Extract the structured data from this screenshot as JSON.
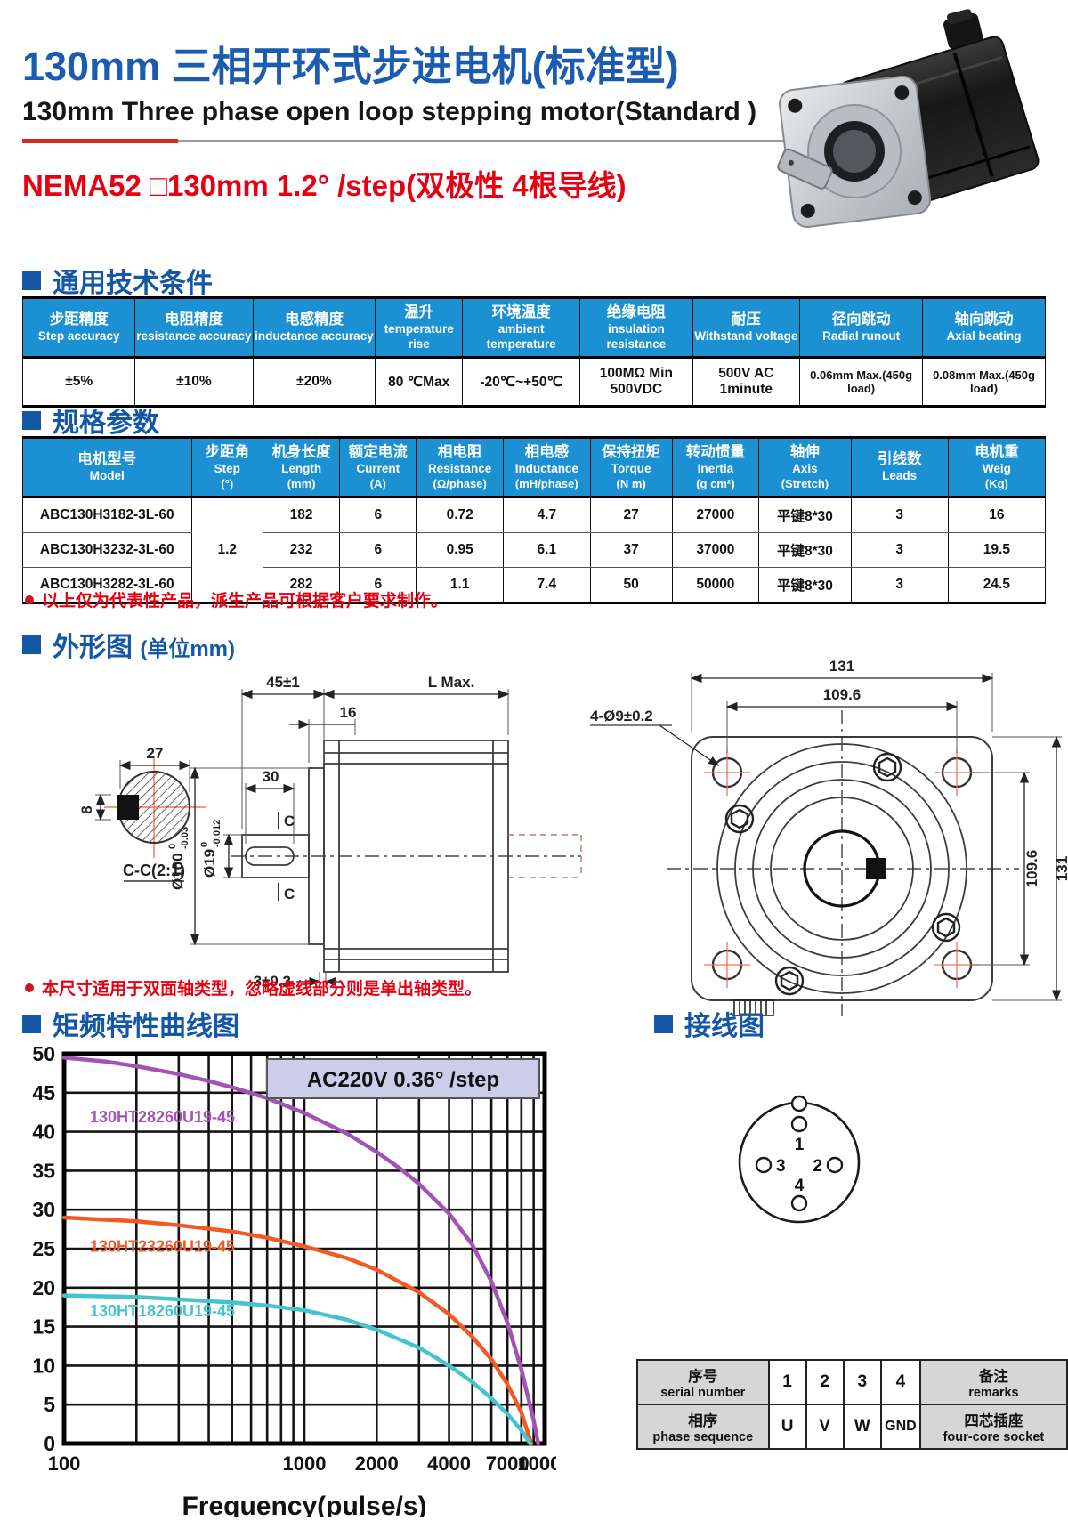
{
  "accent": {
    "title_blue": "#1b5cb0",
    "section_blue": "#1557a7",
    "table_header_blue": "#1b90d3",
    "red": "#e60012",
    "chart_purple": "#a352b5",
    "chart_orange": "#f15a24",
    "chart_cyan": "#45c4ce"
  },
  "header": {
    "title_zh": "130mm 三相开环式步进电机(标准型)",
    "title_en": "130mm Three phase open loop stepping motor(Standard )",
    "spec_line": "NEMA52  □130mm   1.2° /step(双极性 4根导线)"
  },
  "sections": {
    "general": "通用技术条件",
    "specs": "规格参数",
    "outline": "外形图",
    "outline_unit": "(单位mm)",
    "curve": "矩频特性曲线图",
    "wiring": "接线图"
  },
  "general_table": {
    "headers": [
      {
        "zh": "步距精度",
        "en": "Step accuracy"
      },
      {
        "zh": "电阻精度",
        "en": "resistance accuracy"
      },
      {
        "zh": "电感精度",
        "en": "inductance accuracy"
      },
      {
        "zh": "温升",
        "en": "temperature rise"
      },
      {
        "zh": "环境温度",
        "en": "ambient temperature"
      },
      {
        "zh": "绝缘电阻",
        "en": "insulation resistance"
      },
      {
        "zh": "耐压",
        "en": "Withstand voltage"
      },
      {
        "zh": "径向跳动",
        "en": "Radial runout"
      },
      {
        "zh": "轴向跳动",
        "en": "Axial beating"
      }
    ],
    "values": [
      "±5%",
      "±10%",
      "±20%",
      "80 ℃Max",
      "-20℃~+50℃",
      "100MΩ Min 500VDC",
      "500V AC 1minute",
      "0.06mm Max.(450g load)",
      "0.08mm Max.(450g load)"
    ]
  },
  "spec_table": {
    "headers": [
      {
        "zh": "电机型号",
        "en": "Model",
        "unit": ""
      },
      {
        "zh": "步距角",
        "en": "Step",
        "unit": "(°)"
      },
      {
        "zh": "机身长度",
        "en": "Length",
        "unit": "(mm)"
      },
      {
        "zh": "额定电流",
        "en": "Current",
        "unit": "(A)"
      },
      {
        "zh": "相电阻",
        "en": "Resistance",
        "unit": "(Ω/phase)"
      },
      {
        "zh": "相电感",
        "en": "Inductance",
        "unit": "(mH/phase)"
      },
      {
        "zh": "保持扭矩",
        "en": "Torque",
        "unit": "(N m)"
      },
      {
        "zh": "转动惯量",
        "en": "Inertia",
        "unit": "(g cm²)"
      },
      {
        "zh": "轴伸",
        "en": "Axis",
        "unit": "(Stretch)"
      },
      {
        "zh": "引线数",
        "en": "Leads",
        "unit": ""
      },
      {
        "zh": "电机重",
        "en": "Weig",
        "unit": "(Kg)"
      }
    ],
    "step_angle": "1.2",
    "rows": [
      {
        "model": "ABC130H3182-3L-60",
        "length": "182",
        "current": "6",
        "resistance": "0.72",
        "inductance": "4.7",
        "torque": "27",
        "inertia": "27000",
        "axis": "平键8*30",
        "leads": "3",
        "weight": "16"
      },
      {
        "model": "ABC130H3232-3L-60",
        "length": "232",
        "current": "6",
        "resistance": "0.95",
        "inductance": "6.1",
        "torque": "37",
        "inertia": "37000",
        "axis": "平键8*30",
        "leads": "3",
        "weight": "19.5"
      },
      {
        "model": "ABC130H3282-3L-60",
        "length": "282",
        "current": "6",
        "resistance": "1.1",
        "inductance": "7.4",
        "torque": "50",
        "inertia": "50000",
        "axis": "平键8*30",
        "leads": "3",
        "weight": "24.5"
      }
    ]
  },
  "notes": {
    "spec_note": "以上仅为代表性产品，派生产品可根据客户要求制作。",
    "outline_note": "本尺寸适用于双面轴类型，忽略虚线部分则是单出轴类型。"
  },
  "outline": {
    "side": {
      "dim_45": "45±1",
      "dim_L": "L Max.",
      "dim_16": "16",
      "dim_30": "30",
      "dim_3": "3±0.2",
      "d19": "Ø19",
      "d19_top": "0",
      "d19_bot": "-0.012",
      "d100": "Ø100",
      "d100_top": "0",
      "d100_bot": "-0.03",
      "c_mark": "C",
      "section_label": "C-C(2:1)",
      "dim_27": "27",
      "dim_8": "8"
    },
    "front": {
      "dim_131_top": "131",
      "dim_1096_top": "109.6",
      "holes_label": "4-Ø9±0.2",
      "dim_1096_right": "109.6",
      "dim_131_right": "131"
    }
  },
  "chart_data": {
    "type": "line",
    "title": "矩频特性曲线图",
    "xlabel": "Frequency(pulse/s)",
    "ylabel": "",
    "x_scale": "log",
    "xlim": [
      100,
      10000
    ],
    "ylim": [
      0,
      50
    ],
    "y_tick_step": 5,
    "x_tick_labels": [
      100,
      1000,
      2000,
      4000,
      7000,
      10000
    ],
    "grid": "on",
    "annotation": "AC220V 0.36°  /step",
    "series": [
      {
        "name": "130HT28260U19-45",
        "color": "#a352b5",
        "label_pos": [
          128,
          41.2
        ],
        "points": [
          [
            100,
            49.5
          ],
          [
            150,
            49
          ],
          [
            200,
            48.4
          ],
          [
            300,
            47.4
          ],
          [
            400,
            46.5
          ],
          [
            500,
            45.7
          ],
          [
            700,
            44.3
          ],
          [
            1000,
            42.4
          ],
          [
            1500,
            39.8
          ],
          [
            2000,
            37.4
          ],
          [
            2500,
            35.3
          ],
          [
            3000,
            33.3
          ],
          [
            4000,
            29.5
          ],
          [
            5000,
            25.5
          ],
          [
            6000,
            20.8
          ],
          [
            7000,
            15.5
          ],
          [
            8000,
            9.5
          ],
          [
            9000,
            3
          ],
          [
            9400,
            0
          ]
        ]
      },
      {
        "name": "130HT23260U19-45",
        "color": "#f15a24",
        "label_pos": [
          128,
          24.6
        ],
        "points": [
          [
            100,
            29
          ],
          [
            200,
            28.5
          ],
          [
            300,
            28
          ],
          [
            500,
            27.2
          ],
          [
            700,
            26.4
          ],
          [
            1000,
            25.3
          ],
          [
            1500,
            23.8
          ],
          [
            2000,
            22.3
          ],
          [
            3000,
            19.4
          ],
          [
            4000,
            16.6
          ],
          [
            5000,
            13.7
          ],
          [
            6000,
            10.8
          ],
          [
            7000,
            7.6
          ],
          [
            8000,
            4
          ],
          [
            8800,
            0
          ]
        ]
      },
      {
        "name": "130HT18260U19-45",
        "color": "#45c4ce",
        "label_pos": [
          128,
          16.3
        ],
        "points": [
          [
            100,
            19
          ],
          [
            200,
            18.8
          ],
          [
            300,
            18.5
          ],
          [
            500,
            18.1
          ],
          [
            700,
            17.7
          ],
          [
            1000,
            17.1
          ],
          [
            1500,
            15.9
          ],
          [
            2000,
            14.6
          ],
          [
            3000,
            12.3
          ],
          [
            4000,
            10
          ],
          [
            5000,
            7.9
          ],
          [
            6000,
            5.8
          ],
          [
            7000,
            3.8
          ],
          [
            8000,
            1.7
          ],
          [
            8700,
            0
          ]
        ]
      }
    ]
  },
  "wiring": {
    "pins": [
      "1",
      "2",
      "3",
      "4"
    ],
    "table": {
      "row1": {
        "label_zh": "序号",
        "label_en": "serial number",
        "cells": [
          "1",
          "2",
          "3",
          "4"
        ],
        "remark_zh": "备注",
        "remark_en": "remarks"
      },
      "row2": {
        "label_zh": "相序",
        "label_en": "phase sequence",
        "cells": [
          "U",
          "V",
          "W",
          "GND"
        ],
        "remark_zh": "四芯插座",
        "remark_en": "four-core socket"
      }
    }
  }
}
